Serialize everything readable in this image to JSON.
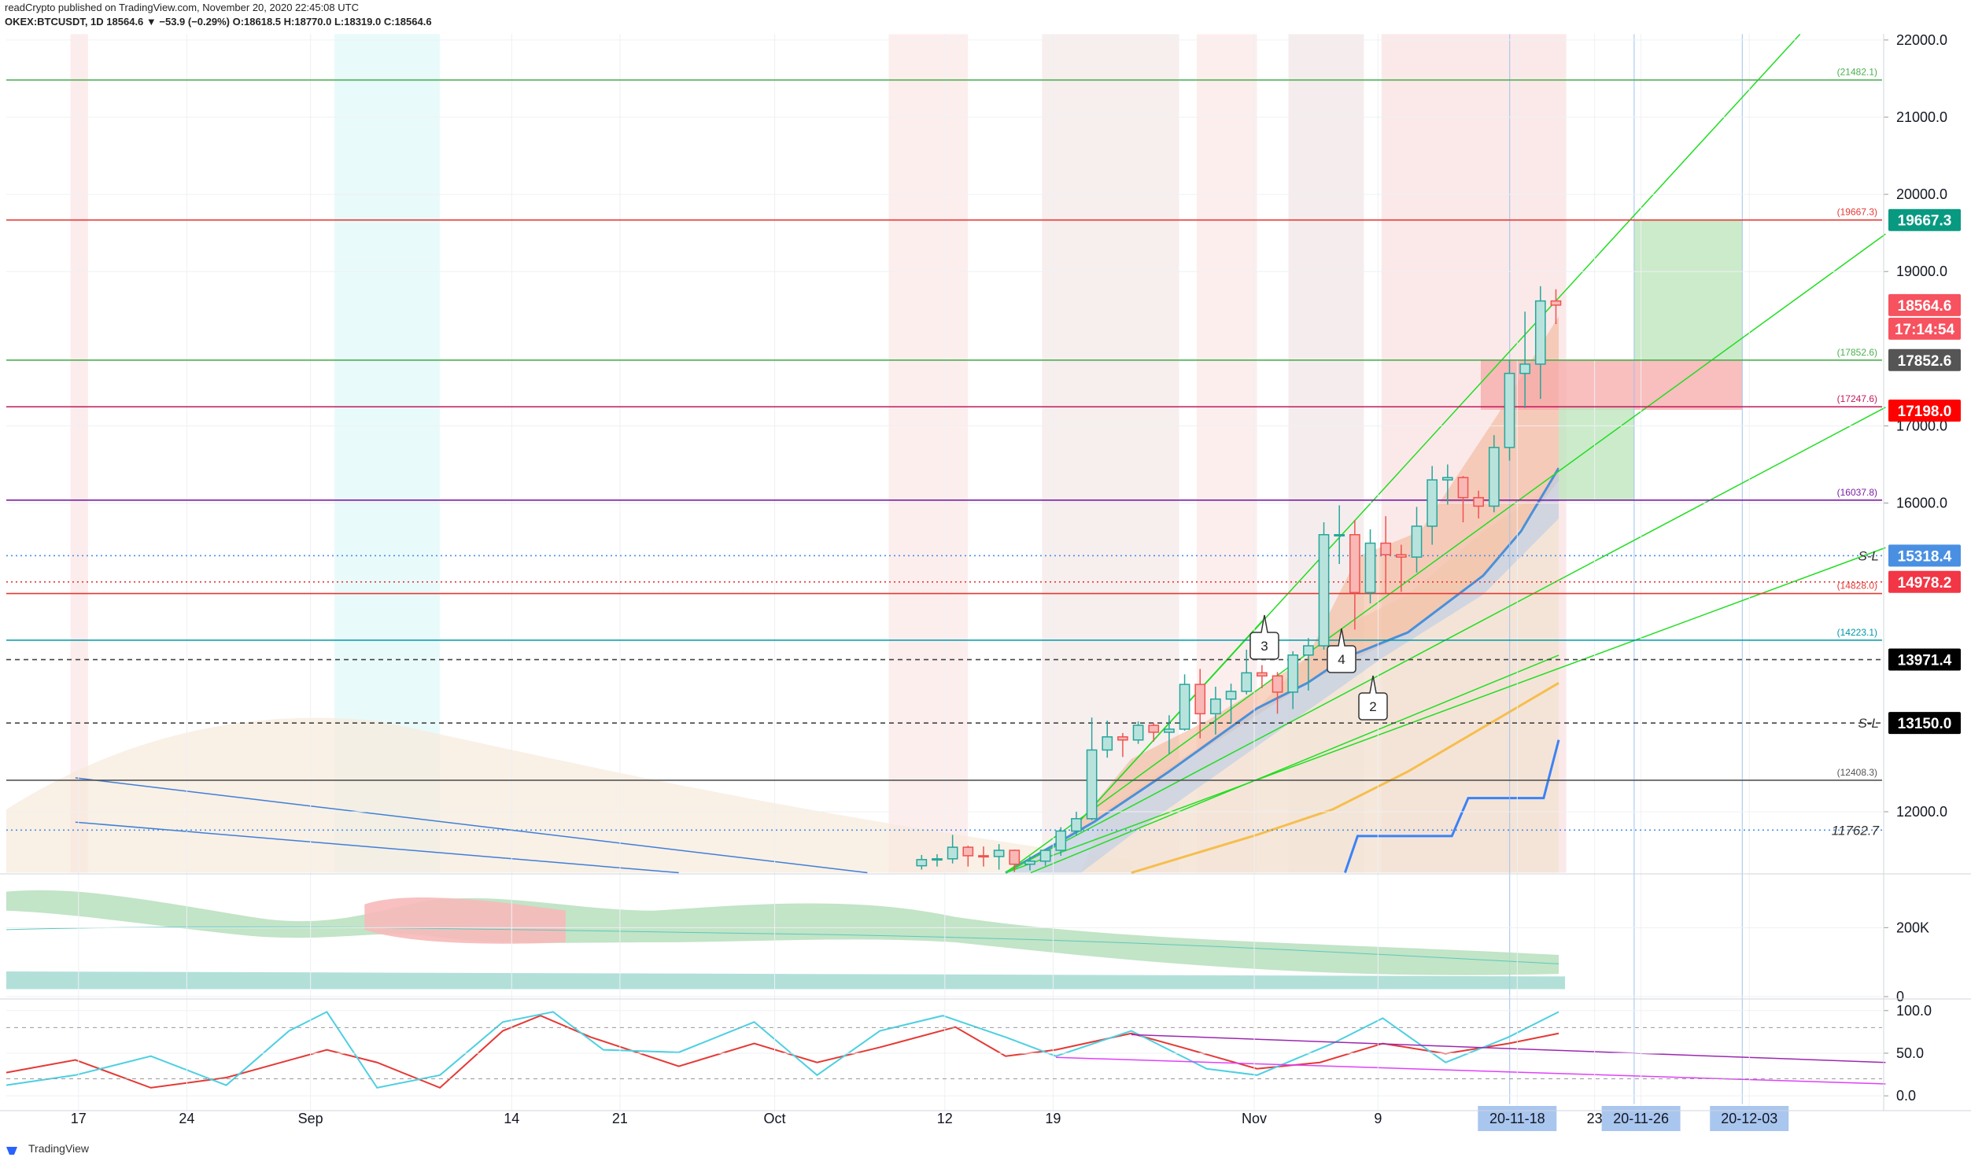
{
  "header": {
    "publisher": "readCrypto published on TradingView.com, November 20, 2020 22:45:08 UTC",
    "symbol_line": "OKEX:BTCUSDT, 1D  18564.6 ▼ −53.9 (−0.29%)  O:18618.5  H:18770.0  L:18319.0  C:18564.6"
  },
  "countdown": "17:14:54",
  "wave_labels": [
    "3",
    "4",
    "2"
  ],
  "footer": "TradingView",
  "chart_data": [
    {
      "type": "candlestick",
      "x": [
        "2020-10-10",
        "2020-10-11",
        "2020-10-12",
        "2020-10-13",
        "2020-10-14",
        "2020-10-15",
        "2020-10-16",
        "2020-10-17",
        "2020-10-18",
        "2020-10-19",
        "2020-10-20",
        "2020-10-21",
        "2020-10-22",
        "2020-10-23",
        "2020-10-24",
        "2020-10-25",
        "2020-10-26",
        "2020-10-27",
        "2020-10-28",
        "2020-10-29",
        "2020-10-30",
        "2020-10-31",
        "2020-11-01",
        "2020-11-02",
        "2020-11-03",
        "2020-11-04",
        "2020-11-05",
        "2020-11-06",
        "2020-11-07",
        "2020-11-08",
        "2020-11-09",
        "2020-11-10",
        "2020-11-11",
        "2020-11-12",
        "2020-11-13",
        "2020-11-14",
        "2020-11-15",
        "2020-11-16",
        "2020-11-17",
        "2020-11-18",
        "2020-11-19",
        "2020-11-20"
      ],
      "open": [
        11300,
        11380,
        11390,
        11540,
        11430,
        11420,
        11500,
        11320,
        11360,
        11500,
        11750,
        11910,
        12800,
        12970,
        12930,
        13120,
        13030,
        13070,
        13650,
        13270,
        13460,
        13560,
        13800,
        13760,
        13550,
        14030,
        14150,
        15590,
        15590,
        14840,
        15480,
        15330,
        15300,
        15700,
        16300,
        16330,
        16070,
        15960,
        16720,
        17680,
        17800,
        18618.5
      ],
      "high": [
        11440,
        11450,
        11700,
        11560,
        11550,
        11580,
        11510,
        11420,
        11520,
        11800,
        12000,
        13220,
        13180,
        13020,
        13170,
        13150,
        13250,
        13780,
        13850,
        13620,
        13660,
        14100,
        13900,
        13810,
        14080,
        14250,
        15750,
        15970,
        15780,
        15660,
        15830,
        15460,
        15950,
        16480,
        16500,
        16350,
        16160,
        16880,
        17850,
        18480,
        18810,
        18770
      ],
      "low": [
        11250,
        11290,
        11330,
        11290,
        11290,
        11250,
        11220,
        11240,
        11300,
        11430,
        11690,
        11890,
        12700,
        12710,
        12880,
        12910,
        12750,
        13050,
        12950,
        13000,
        13140,
        13520,
        13600,
        13270,
        13330,
        13570,
        14100,
        15210,
        14360,
        14700,
        14830,
        14850,
        15100,
        15460,
        15980,
        15750,
        15800,
        15880,
        16550,
        17230,
        17350,
        18319
      ],
      "close": [
        11380,
        11390,
        11540,
        11430,
        11420,
        11500,
        11320,
        11360,
        11500,
        11750,
        11910,
        12800,
        12970,
        12930,
        13120,
        13030,
        13070,
        13650,
        13270,
        13460,
        13560,
        13800,
        13760,
        13550,
        14030,
        14150,
        15590,
        15590,
        14840,
        15480,
        15330,
        15300,
        15700,
        16300,
        16330,
        16070,
        15960,
        16720,
        17680,
        17800,
        18618.5,
        18564.6
      ],
      "up_color": "#26a69a",
      "up_fill": "#b8e3dd",
      "down_color": "#ef5350",
      "down_fill": "#f9b8b5",
      "ylim": [
        11215,
        22080
      ],
      "yticks": [
        {
          "value": 22000,
          "label": "22000.0"
        },
        {
          "value": 21000,
          "label": "21000.0"
        },
        {
          "value": 20000,
          "label": "20000.0"
        },
        {
          "value": 19000,
          "label": "19000.0"
        },
        {
          "value": 17000,
          "label": "17000.0"
        },
        {
          "value": 16000,
          "label": "16000.0"
        },
        {
          "value": 12000,
          "label": "12000.0"
        }
      ],
      "xlim": [
        "2020-08-12T08:00Z",
        "2020-12-11T14:00Z"
      ],
      "xticks": [
        {
          "value": "2020-08-17",
          "label": "17"
        },
        {
          "value": "2020-08-24",
          "label": "24"
        },
        {
          "value": "2020-09-01",
          "label": "Sep"
        },
        {
          "value": "2020-09-14",
          "label": "14"
        },
        {
          "value": "2020-09-21",
          "label": "21"
        },
        {
          "value": "2020-10-01",
          "label": "Oct"
        },
        {
          "value": "2020-10-12",
          "label": "12"
        },
        {
          "value": "2020-10-19",
          "label": "19"
        },
        {
          "value": "2020-11-01",
          "label": "Nov"
        },
        {
          "value": "2020-11-09",
          "label": "9"
        },
        {
          "value": "2020-11-18",
          "label": "20-11-18",
          "highlight": true
        },
        {
          "value": "2020-11-23",
          "label": "23"
        },
        {
          "value": "2020-11-26",
          "label": "20-11-26",
          "highlight": true
        },
        {
          "value": "2020-12-03",
          "label": "20-12-03",
          "highlight": true
        }
      ],
      "grid": true,
      "levels": [
        {
          "value": 21482.1,
          "label": "(21482.1)",
          "color": "#4caf50",
          "style": "solid"
        },
        {
          "value": 19667.3,
          "label": "(19667.3)",
          "color": "#e53935",
          "style": "solid"
        },
        {
          "value": 17852.6,
          "label": "(17852.6)",
          "color": "#4caf50",
          "style": "solid"
        },
        {
          "value": 17247.6,
          "label": "(17247.6)",
          "color": "#c2185b",
          "style": "solid"
        },
        {
          "value": 16037.8,
          "label": "(16037.8)",
          "color": "#7b1fa2",
          "style": "solid"
        },
        {
          "value": 15318.4,
          "color": "#4a90e2",
          "style": "dotted"
        },
        {
          "value": 14978.2,
          "color": "#e53935",
          "style": "dotted"
        },
        {
          "value": 14828.0,
          "label": "(14828.0)",
          "color": "#e53935",
          "style": "solid"
        },
        {
          "value": 14223.1,
          "label": "(14223.1)",
          "color": "#0097a7",
          "style": "solid"
        },
        {
          "value": 13971.4,
          "color": "#444444",
          "style": "dashed"
        },
        {
          "value": 13150,
          "color": "#444444",
          "style": "dashed"
        },
        {
          "value": 12408.3,
          "label": "(12408.3)",
          "color": "#555555",
          "style": "solid"
        },
        {
          "value": 11762.7,
          "color": "#4a90e2",
          "style": "dotted"
        }
      ],
      "line_labels": [
        {
          "value": 15318.4,
          "label": "S-L"
        },
        {
          "value": 13150,
          "label": "S-L"
        },
        {
          "value": 11762.7,
          "label": "11762.7"
        }
      ],
      "price_tags": [
        {
          "value": 19667.3,
          "color": "#089981"
        },
        {
          "value": 18564.6,
          "color": "#f7525f"
        },
        {
          "value": 17852.6,
          "color": "#555555"
        },
        {
          "value": 17198,
          "label": "17198.0",
          "color": "#ff0000"
        },
        {
          "value": 15318.4,
          "color": "#4a90e2"
        },
        {
          "value": 14978.2,
          "color": "#f23645"
        },
        {
          "value": 13971.4,
          "color": "#000000"
        },
        {
          "value": 13150,
          "label": "13150.0",
          "color": "#000000"
        }
      ]
    },
    {
      "type": "volume",
      "ylim": [
        0,
        349000
      ],
      "yticks": [
        {
          "value": 200000,
          "label": "200K"
        },
        0
      ]
    },
    {
      "type": "oscillator",
      "ylim": [
        -10,
        109
      ],
      "yticks": [
        {
          "value": 100,
          "label": "100.0"
        },
        {
          "value": 50,
          "label": "50.0"
        },
        {
          "value": 0,
          "label": "0.0"
        }
      ],
      "bands": [
        20,
        80
      ]
    }
  ]
}
